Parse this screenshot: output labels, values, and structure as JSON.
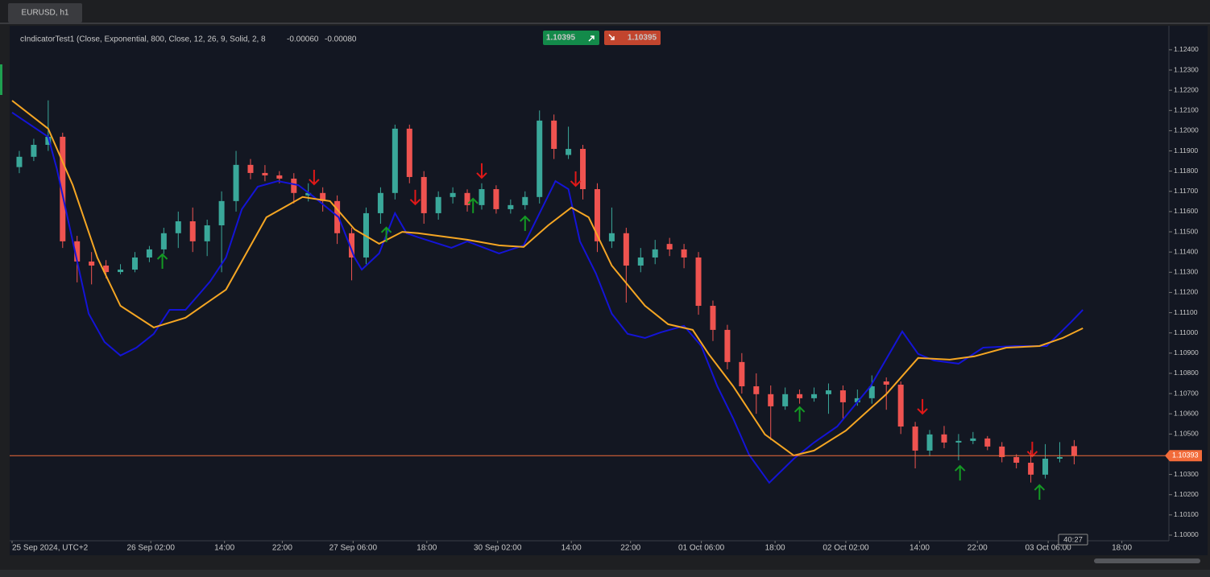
{
  "tab": "EURUSD, h1",
  "indicator": {
    "label": "cIndicatorTest1 (Close, Exponential, 800, Close, 12, 26, 9, Solid, 2, 8",
    "values": [
      "-0.00060",
      "-0.00080"
    ]
  },
  "buy_button": "1.10395",
  "sell_button": "1.10395",
  "timer": "40:27",
  "chart_data": {
    "type": "candlestick",
    "up_color": "#3aa89a",
    "down_color": "#ef5350",
    "ohlc": [
      [
        1.1182,
        1.119,
        1.1179,
        1.11871
      ],
      [
        1.11871,
        1.1196,
        1.1185,
        1.1193
      ],
      [
        1.1193,
        1.1215,
        1.119,
        1.1197
      ],
      [
        1.1197,
        1.1199,
        1.1142,
        1.11453
      ],
      [
        1.11453,
        1.1148,
        1.1125,
        1.11353
      ],
      [
        1.11353,
        1.114,
        1.1124,
        1.11333
      ],
      [
        1.11333,
        1.1136,
        1.1127,
        1.11301
      ],
      [
        1.11301,
        1.1134,
        1.1129,
        1.11313
      ],
      [
        1.11313,
        1.114,
        1.113,
        1.11373
      ],
      [
        1.11373,
        1.1143,
        1.1135,
        1.11413
      ],
      [
        1.11413,
        1.1152,
        1.1139,
        1.11493
      ],
      [
        1.11493,
        1.116,
        1.1142,
        1.11552
      ],
      [
        1.11552,
        1.1162,
        1.114,
        1.11453
      ],
      [
        1.11453,
        1.1156,
        1.1138,
        1.11532
      ],
      [
        1.11532,
        1.117,
        1.113,
        1.11652
      ],
      [
        1.11652,
        1.119,
        1.116,
        1.11831
      ],
      [
        1.11831,
        1.1186,
        1.1176,
        1.11791
      ],
      [
        1.11791,
        1.1183,
        1.1175,
        1.11779
      ],
      [
        1.11779,
        1.118,
        1.1174,
        1.11763
      ],
      [
        1.11763,
        1.1179,
        1.1164,
        1.11692
      ],
      [
        1.1168,
        1.1174,
        1.1165,
        1.11692
      ],
      [
        1.11692,
        1.1172,
        1.116,
        1.11652
      ],
      [
        1.11652,
        1.1168,
        1.1144,
        1.11493
      ],
      [
        1.11493,
        1.1152,
        1.1126,
        1.11373
      ],
      [
        1.11373,
        1.1162,
        1.1134,
        1.11592
      ],
      [
        1.11592,
        1.1172,
        1.1154,
        1.11692
      ],
      [
        1.11692,
        1.1203,
        1.1166,
        1.1201
      ],
      [
        1.1201,
        1.1203,
        1.1174,
        1.11771
      ],
      [
        1.11771,
        1.118,
        1.1154,
        1.11592
      ],
      [
        1.11592,
        1.117,
        1.1156,
        1.11672
      ],
      [
        1.11672,
        1.1172,
        1.1164,
        1.11692
      ],
      [
        1.11692,
        1.1171,
        1.116,
        1.11632
      ],
      [
        1.11632,
        1.1174,
        1.1161,
        1.11711
      ],
      [
        1.11711,
        1.1173,
        1.1159,
        1.11612
      ],
      [
        1.11612,
        1.1166,
        1.1159,
        1.11632
      ],
      [
        1.11632,
        1.117,
        1.1161,
        1.11672
      ],
      [
        1.11672,
        1.121,
        1.1164,
        1.1205
      ],
      [
        1.1205,
        1.1208,
        1.1186,
        1.1191
      ],
      [
        1.1188,
        1.1202,
        1.1186,
        1.1191
      ],
      [
        1.1191,
        1.1193,
        1.1166,
        1.11711
      ],
      [
        1.11711,
        1.1174,
        1.114,
        1.11453
      ],
      [
        1.11453,
        1.1162,
        1.1142,
        1.11493
      ],
      [
        1.11493,
        1.1152,
        1.1115,
        1.11333
      ],
      [
        1.11333,
        1.1142,
        1.113,
        1.11373
      ],
      [
        1.11373,
        1.1146,
        1.1134,
        1.11413
      ],
      [
        1.1144,
        1.1147,
        1.1138,
        1.11413
      ],
      [
        1.11413,
        1.1144,
        1.1132,
        1.11373
      ],
      [
        1.11373,
        1.114,
        1.1109,
        1.11134
      ],
      [
        1.11134,
        1.1116,
        1.1096,
        1.11015
      ],
      [
        1.11015,
        1.1104,
        1.1082,
        1.10856
      ],
      [
        1.10856,
        1.109,
        1.107,
        1.10736
      ],
      [
        1.10736,
        1.108,
        1.106,
        1.10697
      ],
      [
        1.10697,
        1.1074,
        1.1047,
        1.10637
      ],
      [
        1.10637,
        1.1073,
        1.1062,
        1.10697
      ],
      [
        1.10697,
        1.1072,
        1.1065,
        1.10677
      ],
      [
        1.10677,
        1.1073,
        1.1066,
        1.10697
      ],
      [
        1.10697,
        1.1075,
        1.106,
        1.10716
      ],
      [
        1.10716,
        1.1074,
        1.1057,
        1.10657
      ],
      [
        1.10657,
        1.1072,
        1.1064,
        1.10677
      ],
      [
        1.10677,
        1.1079,
        1.1065,
        1.10736
      ],
      [
        1.1076,
        1.1078,
        1.1062,
        1.10744
      ],
      [
        1.10744,
        1.1076,
        1.105,
        1.10537
      ],
      [
        1.10537,
        1.1056,
        1.1033,
        1.10418
      ],
      [
        1.10418,
        1.1052,
        1.1039,
        1.10498
      ],
      [
        1.10498,
        1.1054,
        1.1043,
        1.10458
      ],
      [
        1.10458,
        1.105,
        1.1037,
        1.10466
      ],
      [
        1.10466,
        1.1051,
        1.1045,
        1.10478
      ],
      [
        1.10478,
        1.1049,
        1.1042,
        1.10438
      ],
      [
        1.10438,
        1.1046,
        1.1036,
        1.10386
      ],
      [
        1.10386,
        1.104,
        1.1033,
        1.10358
      ],
      [
        1.10358,
        1.1042,
        1.1026,
        1.10299
      ],
      [
        1.10299,
        1.1045,
        1.1028,
        1.10378
      ],
      [
        1.10378,
        1.1046,
        1.1036,
        1.10386
      ],
      [
        1.1044,
        1.1047,
        1.1035,
        1.10393
      ]
    ],
    "series": [
      {
        "color": "#1414d6",
        "x": [
          0,
          2.5,
          3.1,
          4.2,
          5.3,
          6.4,
          7.5,
          8.6,
          9.8,
          10.9,
          12.0,
          13.7,
          14.8,
          15.9,
          17.0,
          18.4,
          19.8,
          20.9,
          22.6,
          23.7,
          24.2,
          25.4,
          26.5,
          27.3,
          28.1,
          30.4,
          31.5,
          33.7,
          35.4,
          37.6,
          38.5,
          39.3,
          40.4,
          41.5,
          42.6,
          43.8,
          44.9,
          46.5,
          47.7,
          48.8,
          49.9,
          51.0,
          52.4,
          54.1,
          55.5,
          57.1,
          59.4,
          61.6,
          62.7,
          63.8,
          65.5,
          67.2,
          69.4,
          71.6,
          73.3,
          74.1
        ],
        "values": [
          1.1209,
          1.1197,
          1.11811,
          1.11453,
          1.11095,
          1.10955,
          1.10888,
          1.10927,
          1.10995,
          1.11114,
          1.11114,
          1.11254,
          1.11373,
          1.11612,
          1.11723,
          1.11751,
          1.11731,
          1.11672,
          1.11572,
          1.11373,
          1.11313,
          1.11393,
          1.11592,
          1.11493,
          1.11473,
          1.11421,
          1.11453,
          1.11393,
          1.11433,
          1.11751,
          1.11711,
          1.11453,
          1.11294,
          1.11095,
          1.10995,
          1.10975,
          1.11003,
          1.11035,
          1.10935,
          1.10736,
          1.10577,
          1.10398,
          1.10259,
          1.10378,
          1.10458,
          1.10537,
          1.10736,
          1.11007,
          1.10896,
          1.10864,
          1.10848,
          1.10927,
          1.10935,
          1.10935,
          1.11055,
          1.11114
        ]
      },
      {
        "color": "#f5a623",
        "x": [
          0,
          2.5,
          4.2,
          5.9,
          7.5,
          9.8,
          12.0,
          14.8,
          17.6,
          20.1,
          22.0,
          23.7,
          25.4,
          27.0,
          28.1,
          31.5,
          33.7,
          35.4,
          37.1,
          38.7,
          39.9,
          41.5,
          43.8,
          45.4,
          47.1,
          48.2,
          49.9,
          52.1,
          54.1,
          55.5,
          57.7,
          60.5,
          62.7,
          64.9,
          66.6,
          68.8,
          71.1,
          72.7,
          74.1
        ],
        "values": [
          1.12149,
          1.1201,
          1.11731,
          1.11373,
          1.11134,
          1.11027,
          1.11075,
          1.11214,
          1.11572,
          1.11672,
          1.11652,
          1.11512,
          1.11441,
          1.115,
          1.11493,
          1.11461,
          1.11433,
          1.11425,
          1.11532,
          1.1162,
          1.11572,
          1.11333,
          1.11134,
          1.11043,
          1.11015,
          1.10896,
          1.10736,
          1.10498,
          1.10394,
          1.10418,
          1.10517,
          1.10697,
          1.10876,
          1.10868,
          1.10884,
          1.10927,
          1.10935,
          1.10975,
          1.11023
        ]
      }
    ],
    "sell_signals": {
      "color": "#e01818",
      "x": [
        20.9,
        27.9,
        32.5,
        39.0,
        63.0,
        70.6
      ],
      "values": [
        1.11771,
        1.11672,
        1.11803,
        1.11763,
        1.10637,
        1.10426
      ]
    },
    "buy_signals": {
      "color": "#149a24",
      "x": [
        10.4,
        25.9,
        31.9,
        35.5,
        54.5,
        65.6,
        71.1
      ],
      "values": [
        1.11353,
        1.11485,
        1.11628,
        1.1154,
        1.10597,
        1.10306,
        1.10211
      ]
    },
    "price_line": 1.10393,
    "price_line_color": "#f26b3a",
    "xlim": [
      0,
      80
    ],
    "ylim": [
      1.09972,
      1.12519
    ],
    "xticks": [
      {
        "value": 0,
        "label": "25 Sep 2024, UTC+2"
      },
      {
        "value": 9.6,
        "label": "26 Sep 02:00"
      },
      {
        "value": 14.7,
        "label": "14:00"
      },
      {
        "value": 18.7,
        "label": "22:00"
      },
      {
        "value": 23.6,
        "label": "27 Sep 06:00"
      },
      {
        "value": 28.7,
        "label": "18:00"
      },
      {
        "value": 33.6,
        "label": "30 Sep 02:00"
      },
      {
        "value": 38.7,
        "label": "14:00"
      },
      {
        "value": 42.8,
        "label": "22:00"
      },
      {
        "value": 47.7,
        "label": "01 Oct 06:00"
      },
      {
        "value": 52.8,
        "label": "18:00"
      },
      {
        "value": 57.7,
        "label": "02 Oct 02:00"
      },
      {
        "value": 62.8,
        "label": "14:00"
      },
      {
        "value": 66.8,
        "label": "22:00"
      },
      {
        "value": 71.7,
        "label": "03 Oct 06:00"
      },
      {
        "value": 76.8,
        "label": "18:00"
      }
    ],
    "yticks": [
      {
        "value": 1.1,
        "label": "1.10000"
      },
      {
        "value": 1.101,
        "label": "1.10100"
      },
      {
        "value": 1.102,
        "label": "1.10200"
      },
      {
        "value": 1.103,
        "label": "1.10300"
      },
      {
        "value": 1.104,
        "label": "1.10400"
      },
      {
        "value": 1.105,
        "label": "1.10500"
      },
      {
        "value": 1.106,
        "label": "1.10600"
      },
      {
        "value": 1.107,
        "label": "1.10700"
      },
      {
        "value": 1.108,
        "label": "1.10800"
      },
      {
        "value": 1.109,
        "label": "1.10900"
      },
      {
        "value": 1.11,
        "label": "1.11000"
      },
      {
        "value": 1.111,
        "label": "1.11100"
      },
      {
        "value": 1.112,
        "label": "1.11200"
      },
      {
        "value": 1.113,
        "label": "1.11300"
      },
      {
        "value": 1.114,
        "label": "1.11400"
      },
      {
        "value": 1.115,
        "label": "1.11500"
      },
      {
        "value": 1.116,
        "label": "1.11600"
      },
      {
        "value": 1.117,
        "label": "1.11700"
      },
      {
        "value": 1.118,
        "label": "1.11800"
      },
      {
        "value": 1.119,
        "label": "1.11900"
      },
      {
        "value": 1.12,
        "label": "1.12000"
      },
      {
        "value": 1.121,
        "label": "1.12100"
      },
      {
        "value": 1.122,
        "label": "1.12200"
      },
      {
        "value": 1.123,
        "label": "1.12300"
      },
      {
        "value": 1.124,
        "label": "1.12400"
      }
    ]
  }
}
